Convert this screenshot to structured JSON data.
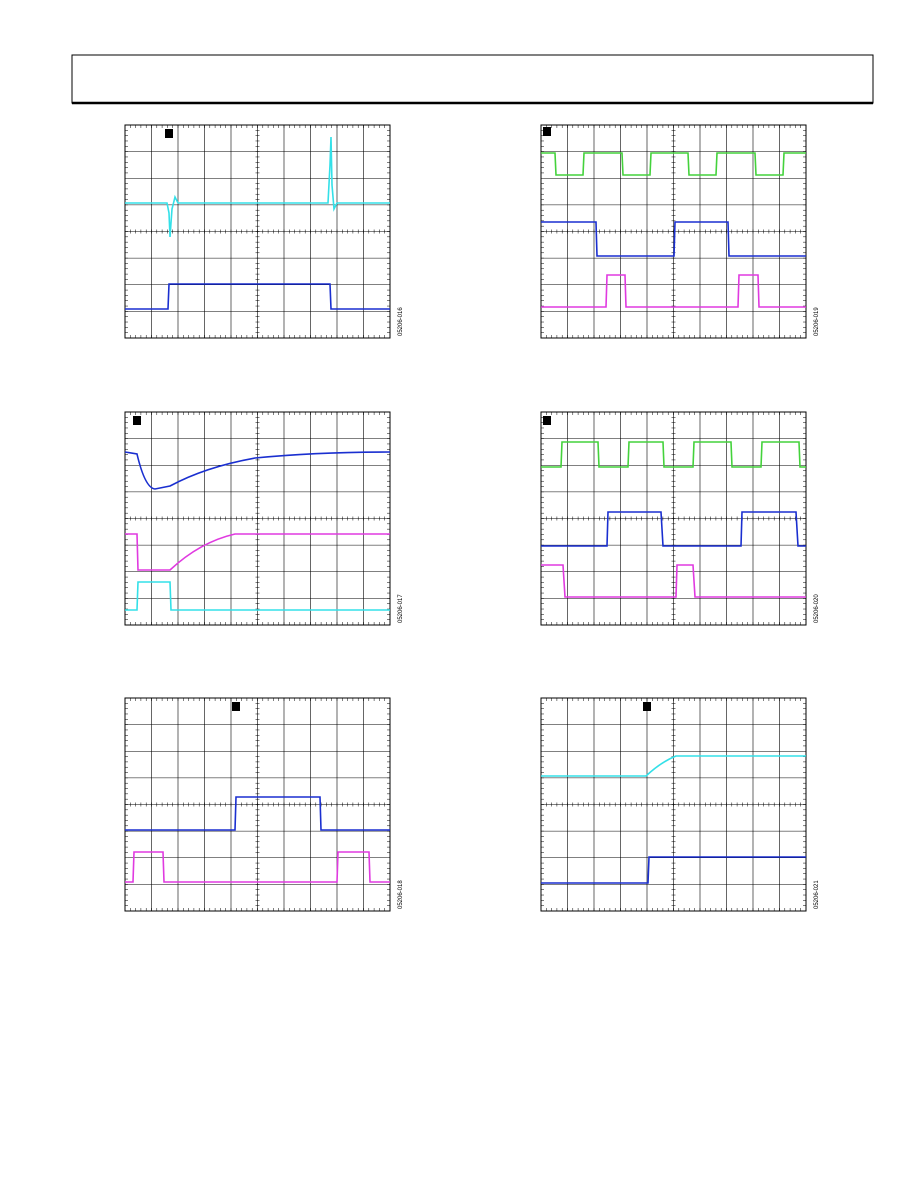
{
  "figures": [
    {
      "id": "05206-016"
    },
    {
      "id": "05206-019"
    },
    {
      "id": "05206-017"
    },
    {
      "id": "05206-020"
    },
    {
      "id": "05206-018"
    },
    {
      "id": "05206-021"
    }
  ]
}
